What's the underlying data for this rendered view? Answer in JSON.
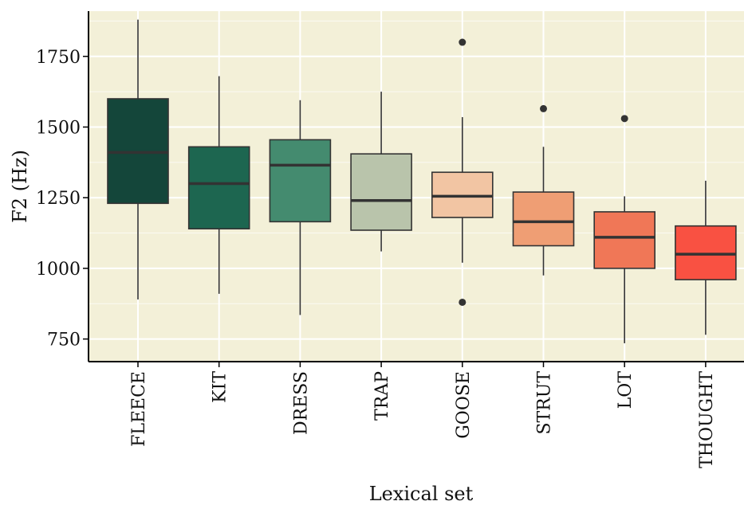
{
  "chart_data": {
    "type": "boxplot",
    "xlabel": "Lexical set",
    "ylabel": "F2 (Hz)",
    "ylim": [
      670,
      1910
    ],
    "yticks": [
      750,
      1000,
      1250,
      1500,
      1750
    ],
    "ytick_labels": [
      "750",
      "1000",
      "1250",
      "1500",
      "1750"
    ],
    "grid": true,
    "panel_background": "#f3f0d8",
    "categories": [
      "FLEECE",
      "KIT",
      "DRESS",
      "TRAP",
      "GOOSE",
      "STRUT",
      "LOT",
      "THOUGHT"
    ],
    "boxes": [
      {
        "category": "FLEECE",
        "whisker_low": 890,
        "q1": 1230,
        "median": 1410,
        "q3": 1600,
        "whisker_high": 1880,
        "outliers": [],
        "color": "#14463a"
      },
      {
        "category": "KIT",
        "whisker_low": 910,
        "q1": 1140,
        "median": 1300,
        "q3": 1430,
        "whisker_high": 1680,
        "outliers": [],
        "color": "#1d6650"
      },
      {
        "category": "DRESS",
        "whisker_low": 835,
        "q1": 1165,
        "median": 1365,
        "q3": 1455,
        "whisker_high": 1595,
        "outliers": [],
        "color": "#448b6f"
      },
      {
        "category": "TRAP",
        "whisker_low": 1060,
        "q1": 1135,
        "median": 1240,
        "q3": 1405,
        "whisker_high": 1625,
        "outliers": [],
        "color": "#b9c4ab"
      },
      {
        "category": "GOOSE",
        "whisker_low": 1020,
        "q1": 1180,
        "median": 1255,
        "q3": 1340,
        "whisker_high": 1535,
        "outliers": [
          880,
          1800
        ],
        "color": "#f2c5a3"
      },
      {
        "category": "STRUT",
        "whisker_low": 975,
        "q1": 1080,
        "median": 1165,
        "q3": 1270,
        "whisker_high": 1430,
        "outliers": [
          1565
        ],
        "color": "#ef9e74"
      },
      {
        "category": "LOT",
        "whisker_low": 735,
        "q1": 1000,
        "median": 1110,
        "q3": 1200,
        "whisker_high": 1255,
        "outliers": [
          1530
        ],
        "color": "#f07757"
      },
      {
        "category": "THOUGHT",
        "whisker_low": 765,
        "q1": 960,
        "median": 1050,
        "q3": 1150,
        "whisker_high": 1310,
        "outliers": [],
        "color": "#f95142"
      }
    ]
  }
}
